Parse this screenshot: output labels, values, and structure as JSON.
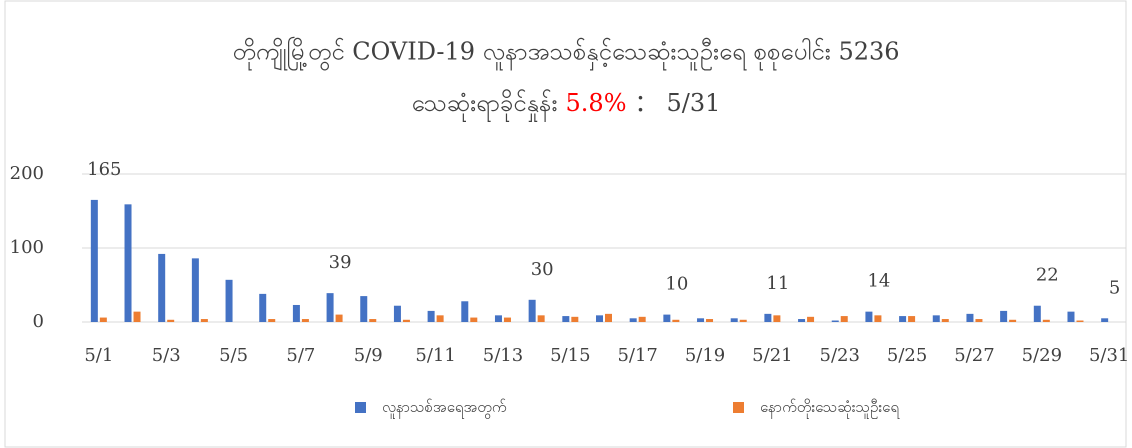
{
  "chart_data": {
    "type": "bar",
    "title": "တိုကျိုမြို့တွင် COVID-19 လူနာအသစ်နှင့်သေဆုံးသူဦးရေ စုစုပေါင်း 5236",
    "subtitle": [
      {
        "text": "သေဆုံးရာခိုင်နှုန်း",
        "color": "#404040"
      },
      {
        "text": "5.8%",
        "color": "#ff0000"
      },
      {
        "text": "：",
        "color": "#404040"
      },
      {
        "text": "5/31",
        "color": "#404040"
      }
    ],
    "categories": [
      "5/1",
      null,
      "5/3",
      null,
      "5/5",
      null,
      "5/7",
      null,
      "5/9",
      null,
      "5/11",
      null,
      "5/13",
      null,
      "5/15",
      null,
      "5/17",
      null,
      "5/19",
      null,
      "5/21",
      null,
      "5/23",
      null,
      "5/25",
      null,
      "5/27",
      null,
      "5/29",
      null,
      "5/31"
    ],
    "series": [
      {
        "name": "လူနာသစ်အရေအတွက်",
        "color": "#4472c4",
        "values": [
          165,
          159,
          92,
          86,
          57,
          38,
          23,
          39,
          35,
          22,
          15,
          28,
          9,
          30,
          8,
          9,
          5,
          10,
          5,
          5,
          11,
          4,
          2,
          14,
          8,
          9,
          11,
          15,
          22,
          14,
          5
        ],
        "value_labels": [
          "165",
          null,
          null,
          null,
          null,
          null,
          null,
          "39",
          null,
          null,
          null,
          null,
          null,
          "30",
          null,
          null,
          null,
          "10",
          null,
          null,
          "11",
          null,
          null,
          "14",
          null,
          null,
          null,
          null,
          "22",
          null,
          "5"
        ]
      },
      {
        "name": "နောက်တိုးသေဆုံးသူဦးရေ",
        "color": "#ed7d31",
        "values": [
          6,
          14,
          3,
          4,
          0,
          4,
          4,
          10,
          4,
          3,
          9,
          6,
          6,
          9,
          7,
          11,
          7,
          3,
          4,
          3,
          9,
          7,
          8,
          9,
          8,
          4,
          4,
          3,
          3,
          2,
          0
        ]
      }
    ],
    "ylim": [
      0,
      200
    ],
    "yticks": [
      0,
      100,
      200
    ],
    "grid": true,
    "legend": "bottom"
  }
}
